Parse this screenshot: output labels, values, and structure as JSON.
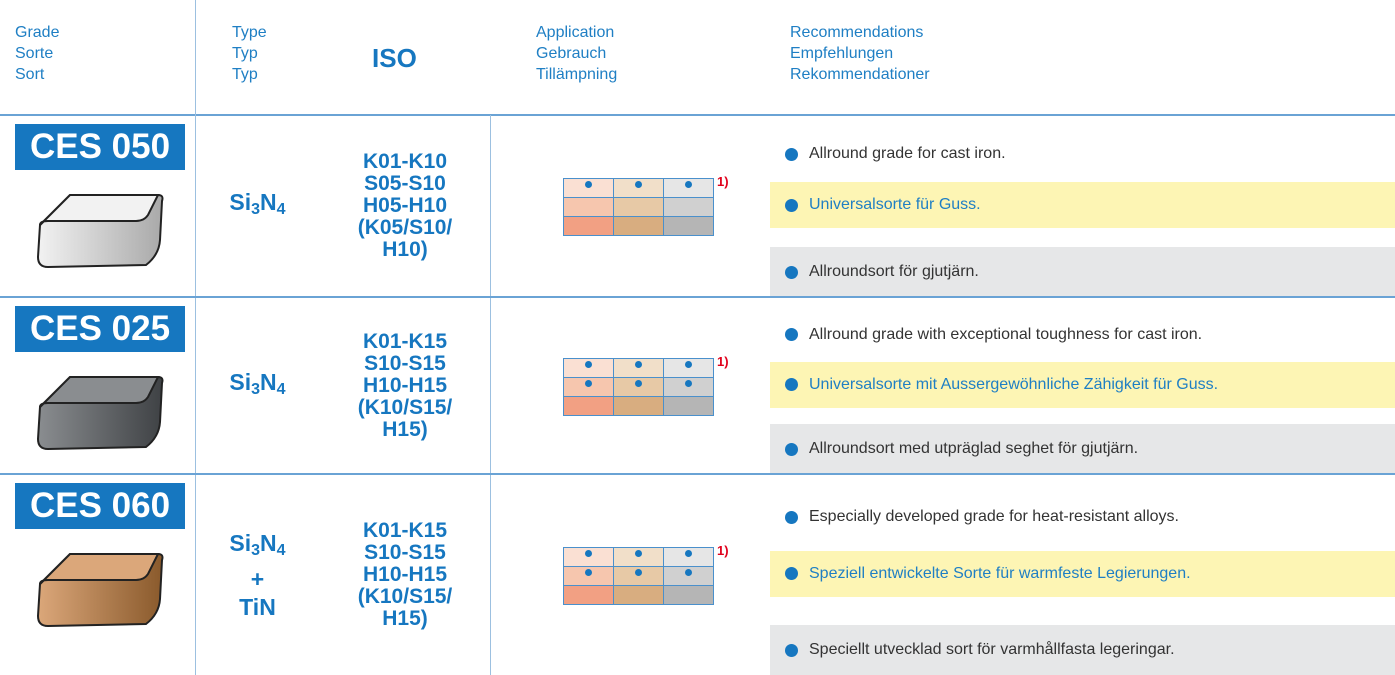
{
  "header": {
    "grade": [
      "Grade",
      "Sorte",
      "Sort"
    ],
    "type": [
      "Type",
      "Typ",
      "Typ"
    ],
    "iso": "ISO",
    "application": [
      "Application",
      "Gebrauch",
      "Tillämpning"
    ],
    "recommendations": [
      "Recommendations",
      "Empfehlungen",
      "Rekommendationer"
    ]
  },
  "rows": [
    {
      "grade": "CES 050",
      "type": [
        "Si",
        "3",
        "N",
        "4"
      ],
      "iso": [
        "K01-K10",
        "S05-S10",
        "H05-H10",
        "(K05/S10/",
        "H10)"
      ],
      "application": {
        "dots": [
          [
            true,
            true,
            true
          ],
          [
            false,
            false,
            false
          ],
          [
            false,
            false,
            false
          ]
        ],
        "note": "1)"
      },
      "recommendations": [
        "Allround grade for cast iron.",
        "Universalsorte für Guss.",
        "Allroundsort för gjutjärn."
      ]
    },
    {
      "grade": "CES 025",
      "type": [
        "Si",
        "3",
        "N",
        "4"
      ],
      "iso": [
        "K01-K15",
        "S10-S15",
        "H10-H15",
        "(K10/S15/",
        "H15)"
      ],
      "application": {
        "dots": [
          [
            true,
            true,
            true
          ],
          [
            true,
            true,
            true
          ],
          [
            false,
            false,
            false
          ]
        ],
        "note": "1)"
      },
      "recommendations": [
        "Allround grade with exceptional toughness for cast iron.",
        "Universalsorte mit Aussergewöhnliche Zähigkeit für Guss.",
        "Allroundsort med utpräglad seghet för gjutjärn."
      ]
    },
    {
      "grade": "CES 060",
      "type": [
        "Si",
        "3",
        "N",
        "4"
      ],
      "coating": [
        "+",
        "TiN"
      ],
      "iso": [
        "K01-K15",
        "S10-S15",
        "H10-H15",
        "(K10/S15/",
        "H15)"
      ],
      "application": {
        "dots": [
          [
            true,
            true,
            true
          ],
          [
            true,
            true,
            true
          ],
          [
            false,
            false,
            false
          ]
        ],
        "note": "1)"
      },
      "recommendations": [
        "Especially developed grade for heat-resistant alloys.",
        "Speziell entwickelte Sorte für warmfeste Legierungen.",
        "Speciellt utvecklad sort för varmhållfasta legeringar."
      ]
    }
  ]
}
